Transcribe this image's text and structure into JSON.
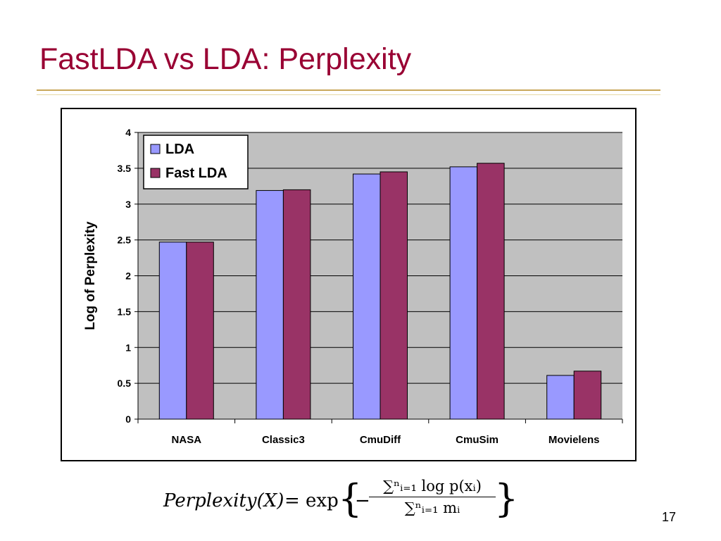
{
  "slide": {
    "title": "FastLDA vs LDA: Perplexity",
    "page_number": "17"
  },
  "formula": {
    "lhs": "Perplexity(X)",
    "eq": "= exp",
    "lbrace": "{",
    "minus": "−",
    "numerator": "∑ⁿᵢ₌₁ log p(xᵢ)",
    "denominator": "∑ⁿᵢ₌₁ mᵢ",
    "rbrace": "}"
  },
  "colors": {
    "title": "#990033",
    "plot_background": "#c0c0c0",
    "lda": "#9999ff",
    "fast_lda": "#993366"
  },
  "chart_data": {
    "type": "bar",
    "title": "",
    "xlabel": "",
    "ylabel": "Log of Perplexity",
    "ylim": [
      0,
      4
    ],
    "yticks": [
      0,
      0.5,
      1,
      1.5,
      2,
      2.5,
      3,
      3.5,
      4
    ],
    "ytick_labels": [
      "0",
      "0.5",
      "1",
      "1.5",
      "2",
      "2.5",
      "3",
      "3.5",
      "4"
    ],
    "grid": true,
    "legend": "top-left",
    "categories": [
      "NASA",
      "Classic3",
      "CmuDiff",
      "CmuSim",
      "Movielens"
    ],
    "series": [
      {
        "name": "LDA",
        "color": "#9999ff",
        "values": [
          2.47,
          3.19,
          3.42,
          3.52,
          0.61
        ]
      },
      {
        "name": "Fast LDA",
        "color": "#993366",
        "values": [
          2.47,
          3.2,
          3.45,
          3.57,
          0.67
        ]
      }
    ]
  }
}
